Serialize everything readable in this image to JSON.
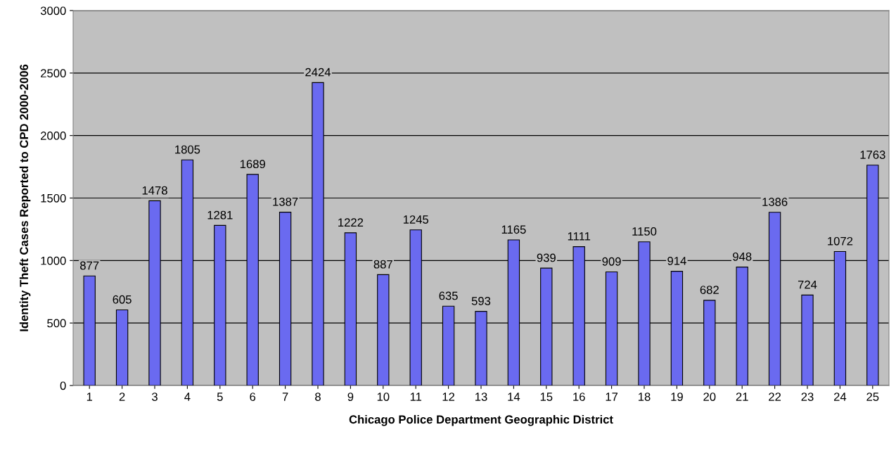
{
  "chart_data": {
    "type": "bar",
    "xlabel": "Chicago Police Department Geographic District",
    "ylabel": "Identity Theft Cases Reported to CPD 2000-2006",
    "categories": [
      "1",
      "2",
      "3",
      "4",
      "5",
      "6",
      "7",
      "8",
      "9",
      "10",
      "11",
      "12",
      "13",
      "14",
      "15",
      "16",
      "17",
      "18",
      "19",
      "20",
      "21",
      "22",
      "23",
      "24",
      "25"
    ],
    "values": [
      877,
      605,
      1478,
      1805,
      1281,
      1689,
      1387,
      2424,
      1222,
      887,
      1245,
      635,
      593,
      1165,
      939,
      1111,
      909,
      1150,
      914,
      682,
      948,
      1386,
      724,
      1072,
      1763
    ],
    "color": "#6a6af0",
    "ylim": [
      0,
      3000
    ],
    "yticks": [
      0,
      500,
      1000,
      1500,
      2000,
      2500,
      3000
    ],
    "grid": "y",
    "data_labels": true
  }
}
